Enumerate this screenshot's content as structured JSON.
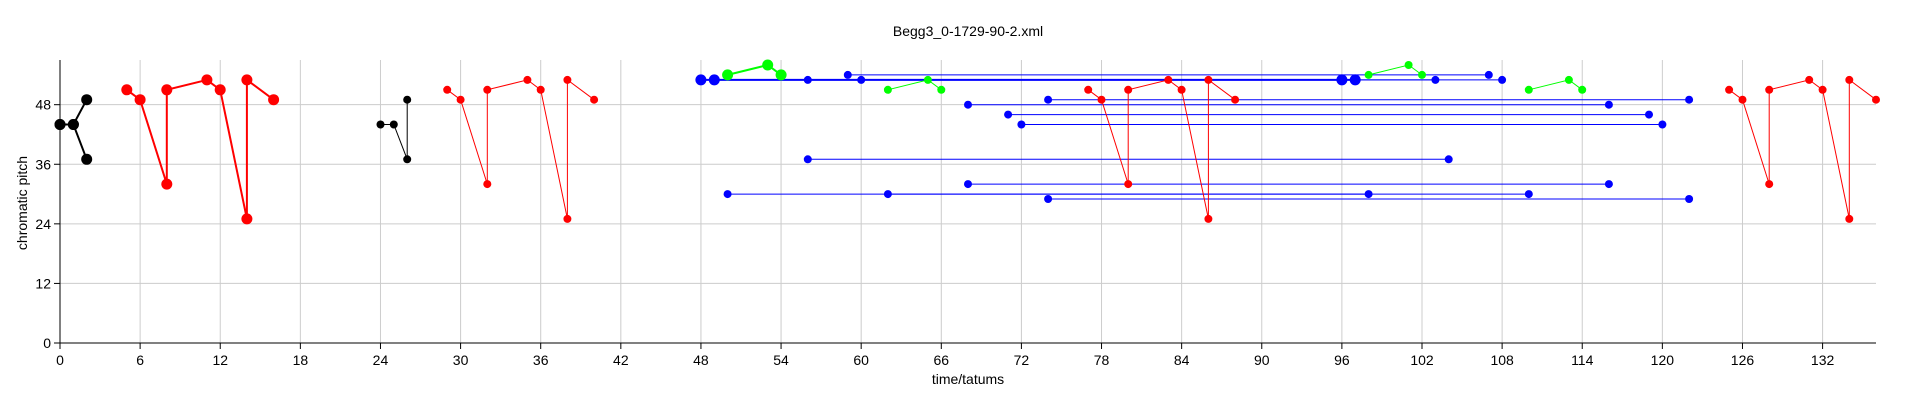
{
  "chart_data": {
    "type": "scatter",
    "title": "Begg3_0-1729-90-2.xml",
    "xlabel": "time/tatums",
    "ylabel": "chromatic pitch",
    "xlim": [
      0,
      136
    ],
    "ylim": [
      0,
      57
    ],
    "xticks": [
      0,
      6,
      12,
      18,
      24,
      30,
      36,
      42,
      48,
      54,
      60,
      66,
      72,
      78,
      84,
      90,
      96,
      102,
      108,
      114,
      120,
      126,
      132
    ],
    "yticks": [
      0,
      12,
      24,
      36,
      48
    ],
    "grid": true,
    "colors": {
      "black": "#000000",
      "red": "#ff0000",
      "blue": "#0000ff",
      "green": "#00ff00",
      "grid": "#cccccc"
    },
    "series": [
      {
        "color": "black",
        "weight": "bold",
        "points": [
          [
            0,
            44
          ],
          [
            1,
            44
          ],
          [
            2,
            37
          ]
        ]
      },
      {
        "color": "black",
        "weight": "bold",
        "points": [
          [
            0,
            44
          ],
          [
            1,
            44
          ],
          [
            2,
            49
          ]
        ]
      },
      {
        "color": "red",
        "weight": "bold",
        "points": [
          [
            5,
            51
          ],
          [
            6,
            49
          ],
          [
            8,
            32
          ],
          [
            8,
            51
          ],
          [
            11,
            53
          ],
          [
            12,
            51
          ],
          [
            14,
            25
          ],
          [
            14,
            53
          ],
          [
            16,
            49
          ]
        ]
      },
      {
        "color": "black",
        "weight": "normal",
        "points": [
          [
            24,
            44
          ],
          [
            25,
            44
          ],
          [
            26,
            37
          ],
          [
            26,
            49
          ]
        ]
      },
      {
        "color": "red",
        "weight": "normal",
        "points": [
          [
            29,
            51
          ],
          [
            30,
            49
          ],
          [
            32,
            32
          ],
          [
            32,
            51
          ],
          [
            35,
            53
          ],
          [
            36,
            51
          ],
          [
            38,
            25
          ],
          [
            38,
            53
          ],
          [
            40,
            49
          ]
        ]
      },
      {
        "color": "blue",
        "weight": "bold",
        "points": [
          [
            48,
            53
          ],
          [
            49,
            53
          ],
          [
            96,
            53
          ],
          [
            97,
            53
          ]
        ]
      },
      {
        "color": "blue",
        "weight": "normal",
        "points": [
          [
            56,
            53
          ],
          [
            103,
            53
          ]
        ]
      },
      {
        "color": "blue",
        "weight": "normal",
        "points": [
          [
            59,
            54
          ],
          [
            107,
            54
          ]
        ]
      },
      {
        "color": "blue",
        "weight": "normal",
        "points": [
          [
            60,
            53
          ],
          [
            108,
            53
          ]
        ]
      },
      {
        "color": "green",
        "weight": "bold",
        "points": [
          [
            50,
            54
          ],
          [
            53,
            56
          ],
          [
            54,
            54
          ]
        ]
      },
      {
        "color": "green",
        "weight": "normal",
        "points": [
          [
            62,
            51
          ],
          [
            65,
            53
          ],
          [
            66,
            51
          ]
        ]
      },
      {
        "color": "green",
        "weight": "normal",
        "points": [
          [
            98,
            54
          ],
          [
            101,
            56
          ],
          [
            102,
            54
          ]
        ]
      },
      {
        "color": "green",
        "weight": "normal",
        "points": [
          [
            110,
            51
          ],
          [
            113,
            53
          ],
          [
            114,
            51
          ]
        ]
      },
      {
        "color": "blue",
        "weight": "normal",
        "points": [
          [
            68,
            48
          ],
          [
            116,
            48
          ]
        ]
      },
      {
        "color": "blue",
        "weight": "normal",
        "points": [
          [
            74,
            49
          ],
          [
            122,
            49
          ]
        ]
      },
      {
        "color": "blue",
        "weight": "normal",
        "points": [
          [
            71,
            46
          ],
          [
            119,
            46
          ]
        ]
      },
      {
        "color": "blue",
        "weight": "normal",
        "points": [
          [
            72,
            44
          ],
          [
            120,
            44
          ]
        ]
      },
      {
        "color": "blue",
        "weight": "normal",
        "points": [
          [
            56,
            37
          ],
          [
            104,
            37
          ]
        ]
      },
      {
        "color": "blue",
        "weight": "normal",
        "points": [
          [
            68,
            32
          ],
          [
            116,
            32
          ]
        ]
      },
      {
        "color": "blue",
        "weight": "normal",
        "points": [
          [
            50,
            30
          ],
          [
            98,
            30
          ]
        ]
      },
      {
        "color": "blue",
        "weight": "normal",
        "points": [
          [
            62,
            30
          ],
          [
            110,
            30
          ]
        ]
      },
      {
        "color": "blue",
        "weight": "normal",
        "points": [
          [
            74,
            29
          ],
          [
            122,
            29
          ]
        ]
      },
      {
        "color": "red",
        "weight": "normal",
        "points": [
          [
            77,
            51
          ],
          [
            78,
            49
          ],
          [
            80,
            32
          ],
          [
            80,
            51
          ],
          [
            83,
            53
          ],
          [
            84,
            51
          ],
          [
            86,
            25
          ],
          [
            86,
            53
          ],
          [
            88,
            49
          ]
        ]
      },
      {
        "color": "red",
        "weight": "normal",
        "points": [
          [
            125,
            51
          ],
          [
            126,
            49
          ],
          [
            128,
            32
          ],
          [
            128,
            51
          ],
          [
            131,
            53
          ],
          [
            132,
            51
          ],
          [
            134,
            25
          ],
          [
            134,
            53
          ],
          [
            136,
            49
          ]
        ]
      }
    ]
  }
}
